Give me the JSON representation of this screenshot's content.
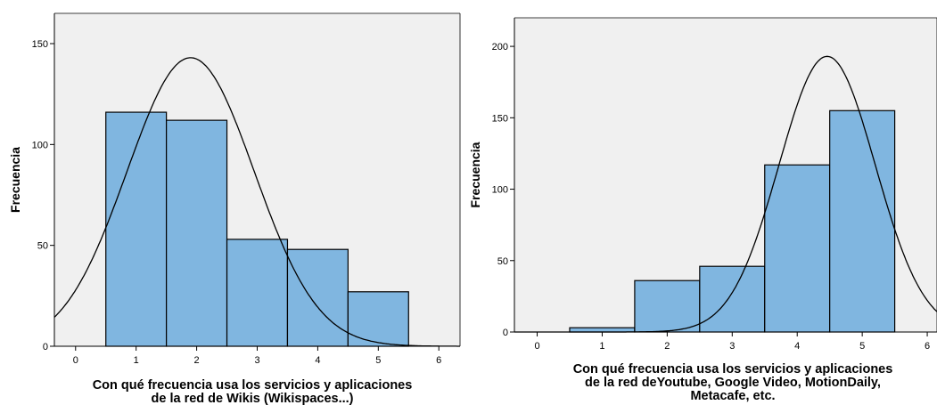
{
  "chart_data": [
    {
      "type": "bar",
      "subtype": "histogram-with-normal-curve",
      "bins": [
        1,
        2,
        3,
        4,
        5
      ],
      "values": [
        116,
        112,
        53,
        48,
        27
      ],
      "ylabel": "Frecuencia",
      "xlabel_lines": [
        "Con qué frecuencia usa los servicios y aplicaciones",
        "de la  red  de Wikis (Wikispaces...)"
      ],
      "xlim": [
        -0.35,
        6.35
      ],
      "ylim": [
        0,
        165
      ],
      "x_ticks": [
        0,
        1,
        2,
        3,
        4,
        5,
        6
      ],
      "y_ticks": [
        0,
        50,
        100,
        150
      ],
      "normal_curve": {
        "peak": 143,
        "mean": 1.9,
        "sd": 1.05
      },
      "bar_color": "#80b6e0",
      "plot_bg": "#f0f0f0",
      "grid": false
    },
    {
      "type": "bar",
      "subtype": "histogram-with-normal-curve",
      "bins": [
        1,
        2,
        3,
        4,
        5
      ],
      "values": [
        3,
        36,
        46,
        117,
        155
      ],
      "ylabel": "Frecuencia",
      "xlabel_lines": [
        "Con qué frecuencia usa los servicios y aplicaciones",
        "de la  red  deYoutube, Google Video, MotionDaily,",
        "Metacafe, etc."
      ],
      "xlim": [
        -0.35,
        6.15
      ],
      "ylim": [
        0,
        220
      ],
      "x_ticks": [
        0,
        1,
        2,
        3,
        4,
        5,
        6
      ],
      "y_ticks": [
        0,
        50,
        100,
        150,
        200
      ],
      "normal_curve": {
        "peak": 193,
        "mean": 4.46,
        "sd": 0.74
      },
      "bar_color": "#80b6e0",
      "plot_bg": "#f0f0f0",
      "grid": false
    }
  ]
}
